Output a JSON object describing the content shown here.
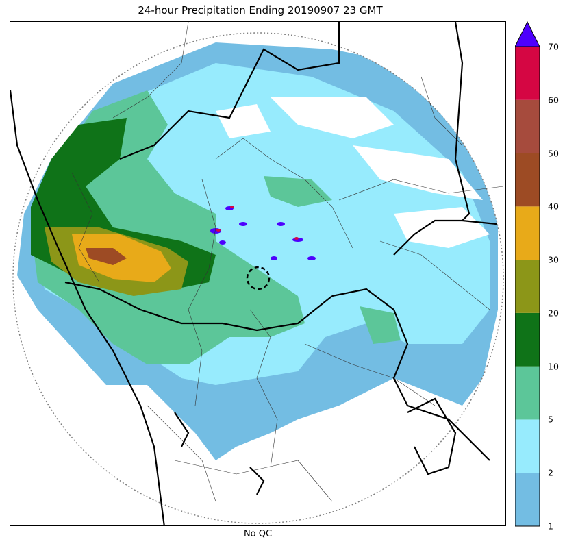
{
  "title": "24-hour Precipitation Ending 20190907 23 GMT",
  "xlabel": "No QC",
  "colorbar": {
    "ticks": [
      "1",
      "2",
      "5",
      "10",
      "20",
      "30",
      "40",
      "50",
      "60",
      "70"
    ],
    "colors": [
      "#73bde3",
      "#97ebfd",
      "#5cc699",
      "#0f7318",
      "#8c9618",
      "#e8aa19",
      "#9d4b24",
      "#a64b3d",
      "#d50643"
    ],
    "extend_color": "#4d00fd"
  },
  "map": {
    "radar_range_ring_color": "#808080",
    "border_color": "#000000"
  }
}
